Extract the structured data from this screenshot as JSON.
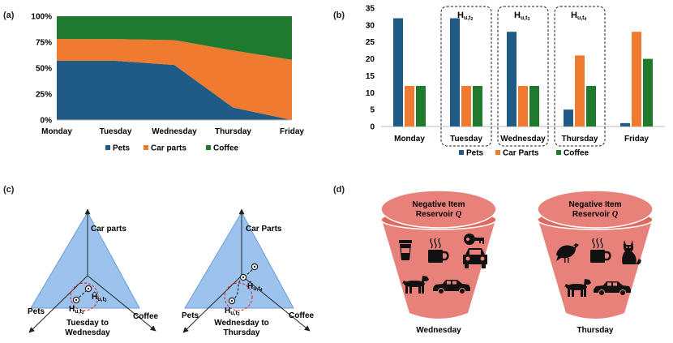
{
  "panels": {
    "a": {
      "letter": "(a)"
    },
    "b": {
      "letter": "(b)"
    },
    "c": {
      "letter": "(c)"
    },
    "d": {
      "letter": "(d)"
    }
  },
  "colors": {
    "pets": "#1f5b85",
    "car_parts": "#f07a2f",
    "coffee": "#1f7a2e",
    "triangle": "#9cc3ee",
    "bucket": "#e8817a",
    "bucket_rim": "#e0695f",
    "circle": "#d9333f"
  },
  "chart_data": [
    {
      "panel": "a",
      "type": "area",
      "stacked": true,
      "normalized": true,
      "categories": [
        "Monday",
        "Tuesday",
        "Wednesday",
        "Thursday",
        "Friday"
      ],
      "series": [
        {
          "name": "Pets",
          "values": [
            57,
            57,
            53,
            12,
            0
          ]
        },
        {
          "name": "Car parts",
          "values": [
            21,
            21,
            24,
            55,
            58
          ]
        },
        {
          "name": "Coffee",
          "values": [
            22,
            22,
            23,
            33,
            42
          ]
        }
      ],
      "y_ticks": [
        "0%",
        "25%",
        "50%",
        "75%",
        "100%"
      ],
      "ylim": [
        0,
        100
      ],
      "legend_placement": "bottom"
    },
    {
      "panel": "b",
      "type": "bar",
      "categories": [
        "Monday",
        "Tuesday",
        "Wednesday",
        "Thursday",
        "Friday"
      ],
      "series": [
        {
          "name": "Pets",
          "values": [
            32,
            32,
            28,
            5,
            1
          ]
        },
        {
          "name": "Car Parts",
          "values": [
            12,
            12,
            12,
            21,
            28
          ]
        },
        {
          "name": "Coffee",
          "values": [
            12,
            12,
            12,
            12,
            20
          ]
        }
      ],
      "y_ticks": [
        "0",
        "5",
        "10",
        "15",
        "20",
        "25",
        "30",
        "35"
      ],
      "ylim": [
        0,
        35
      ],
      "highlight_boxes": [
        {
          "category": "Tuesday",
          "label_main": "H",
          "label_sub": "u,t",
          "label_subsub": "2"
        },
        {
          "category": "Wednesday",
          "label_main": "H",
          "label_sub": "u,t",
          "label_subsub": "3"
        },
        {
          "category": "Thursday",
          "label_main": "H",
          "label_sub": "u,t",
          "label_subsub": "4"
        }
      ],
      "legend_placement": "bottom"
    }
  ],
  "simplex": {
    "left": {
      "axis_top": "Car parts",
      "axis_left": "Pets",
      "axis_right": "Coffee",
      "caption_line1": "Tuesday to",
      "caption_line2": "Wednesday",
      "hat_a": "Ĥ",
      "sub_a": "u,t",
      "subsub_a": "3",
      "hat_b": "H",
      "sub_b": "u,t",
      "subsub_b": "2"
    },
    "right": {
      "axis_top": "Car Parts",
      "axis_left": "Pets",
      "axis_right": "Coffee",
      "caption_line1": "Wednesday to",
      "caption_line2": "Thursday",
      "hat_a": "Ĥ",
      "sub_a": "u,t",
      "subsub_a": "4",
      "hat_b": "H",
      "sub_b": "u,t",
      "subsub_b": "3"
    }
  },
  "reservoirs": [
    {
      "title_line1": "Negative Item",
      "title_line2": "Reservoir",
      "symbol": "Q",
      "caption": "Wednesday",
      "icons": [
        "coffee-cup-icon",
        "hot-coffee-mug-icon",
        "car-key-icon",
        "car-front-icon",
        "dog-icon",
        "car-side-icon"
      ]
    },
    {
      "title_line1": "Negative Item",
      "title_line2": "Reservoir",
      "symbol": "Q",
      "caption": "Thursday",
      "icons": [
        "bird-icon",
        "hot-coffee-mug-icon",
        "cat-icon",
        "dog-icon",
        "car-side-icon"
      ]
    }
  ]
}
